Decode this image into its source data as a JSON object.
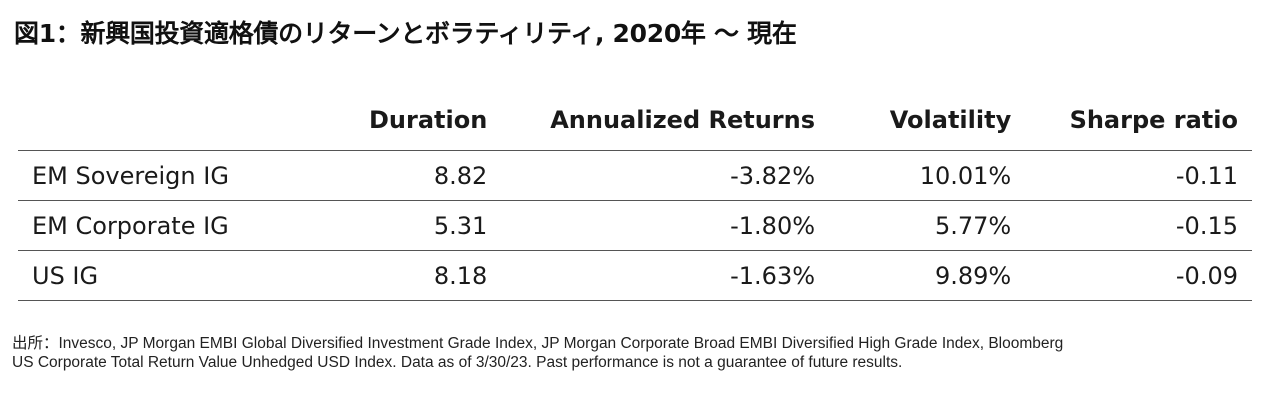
{
  "title": "図1：新興国投資適格債のリターンとボラティリティ, 2020年 〜 現在",
  "table": {
    "headers": [
      "",
      "Duration",
      "Annualized Returns",
      "Volatility",
      "Sharpe ratio"
    ],
    "rows": [
      {
        "label": "EM Sovereign IG",
        "duration": "8.82",
        "returns": "-3.82%",
        "volatility": "10.01%",
        "sharpe": "-0.11"
      },
      {
        "label": "EM Corporate IG",
        "duration": "5.31",
        "returns": "-1.80%",
        "volatility": "5.77%",
        "sharpe": "-0.15"
      },
      {
        "label": "US IG",
        "duration": "8.18",
        "returns": "-1.63%",
        "volatility": "9.89%",
        "sharpe": "-0.09"
      }
    ]
  },
  "footnote": {
    "line1": "出所：Invesco, JP Morgan EMBI Global Diversified Investment Grade Index, JP Morgan Corporate Broad EMBI Diversified High Grade Index, Bloomberg",
    "line2": "US Corporate Total Return Value Unhedged USD Index. Data as of 3/30/23. Past performance is not a guarantee of future results."
  }
}
